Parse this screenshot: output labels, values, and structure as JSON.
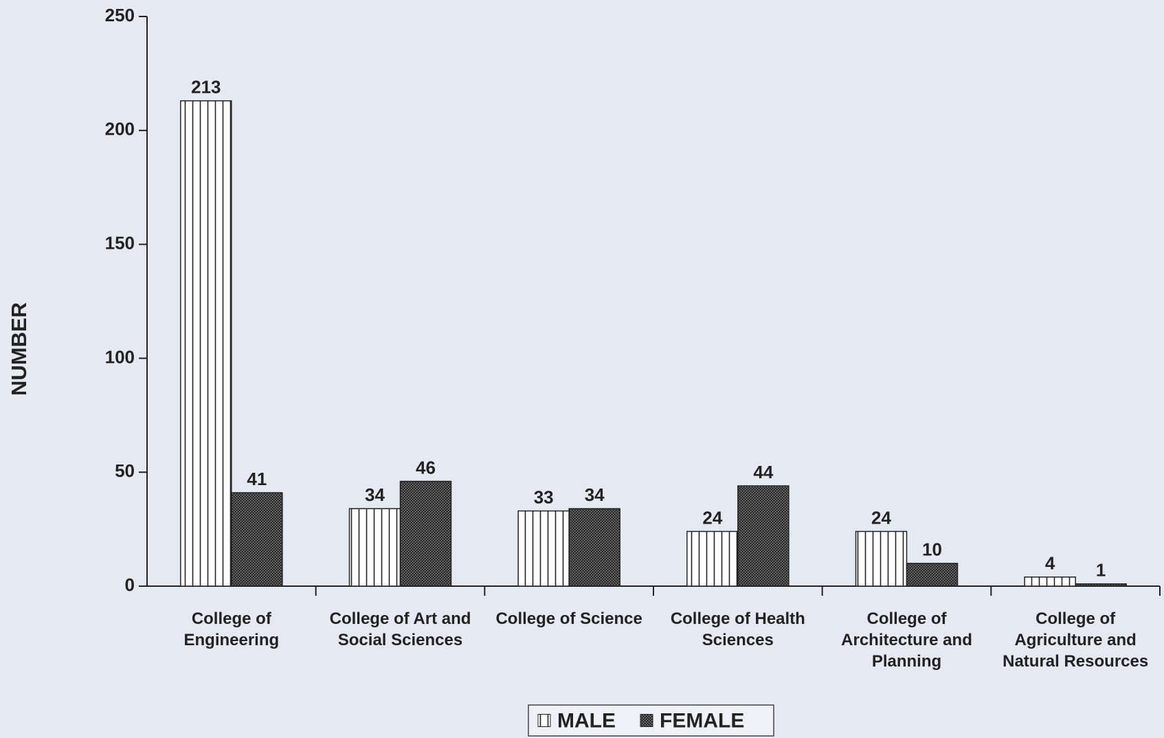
{
  "chart_data": {
    "type": "bar",
    "ylabel": "NUMBER",
    "categories": [
      "College of Engineering",
      "College of Art and Social Sciences",
      "College of Science",
      "College of Health Sciences",
      "College of Architecture and Planning",
      "College of Agriculture and Natural Resources"
    ],
    "series": [
      {
        "name": "MALE",
        "color": "#ffffff",
        "hatch": "vertical",
        "values": [
          213,
          34,
          33,
          24,
          24,
          4
        ]
      },
      {
        "name": "FEMALE",
        "color": "#2e2e2e",
        "hatch": "dots",
        "values": [
          41,
          46,
          34,
          44,
          10,
          1
        ]
      }
    ],
    "ylim": [
      0,
      250
    ],
    "yticks": [
      0,
      50,
      100,
      150,
      200,
      250
    ],
    "legend": "bottom"
  }
}
